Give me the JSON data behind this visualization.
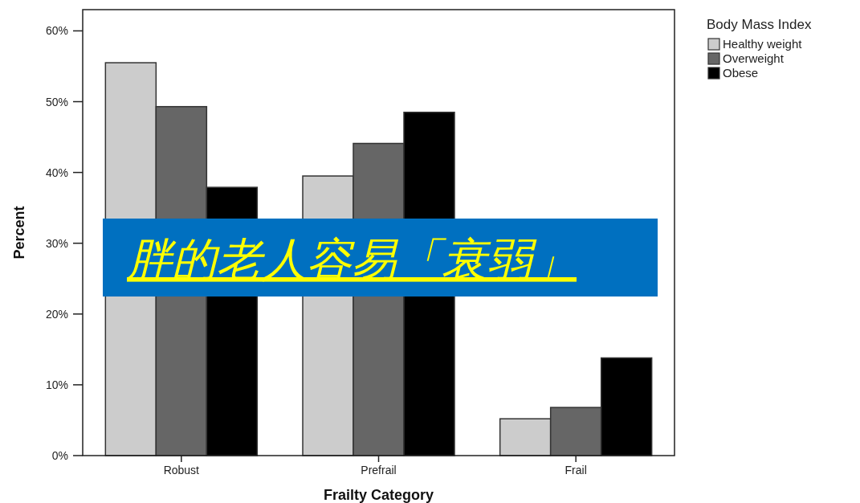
{
  "chart_data": {
    "type": "bar",
    "xlabel": "Frailty Category",
    "ylabel": "Percent",
    "legend_title": "Body Mass Index",
    "legend": "top right",
    "categories": [
      "Robust",
      "Prefrail",
      "Frail"
    ],
    "series": [
      {
        "name": "Healthy weight",
        "color": "#cccccc",
        "values": [
          55.5,
          39.5,
          5.2
        ]
      },
      {
        "name": "Overweight",
        "color": "#666666",
        "values": [
          49.3,
          44.1,
          6.8
        ]
      },
      {
        "name": "Obese",
        "color": "#000000",
        "values": [
          37.9,
          48.5,
          13.8
        ]
      }
    ],
    "ylim": [
      0,
      63
    ],
    "yticks": [
      {
        "value": 0,
        "label": "0%"
      },
      {
        "value": 10,
        "label": "10%"
      },
      {
        "value": 20,
        "label": "20%"
      },
      {
        "value": 30,
        "label": "30%"
      },
      {
        "value": 40,
        "label": "40%"
      },
      {
        "value": 50,
        "label": "50%"
      },
      {
        "value": 60,
        "label": "60%"
      }
    ],
    "annotations": [
      "胖的老人容易「衰弱」"
    ]
  }
}
